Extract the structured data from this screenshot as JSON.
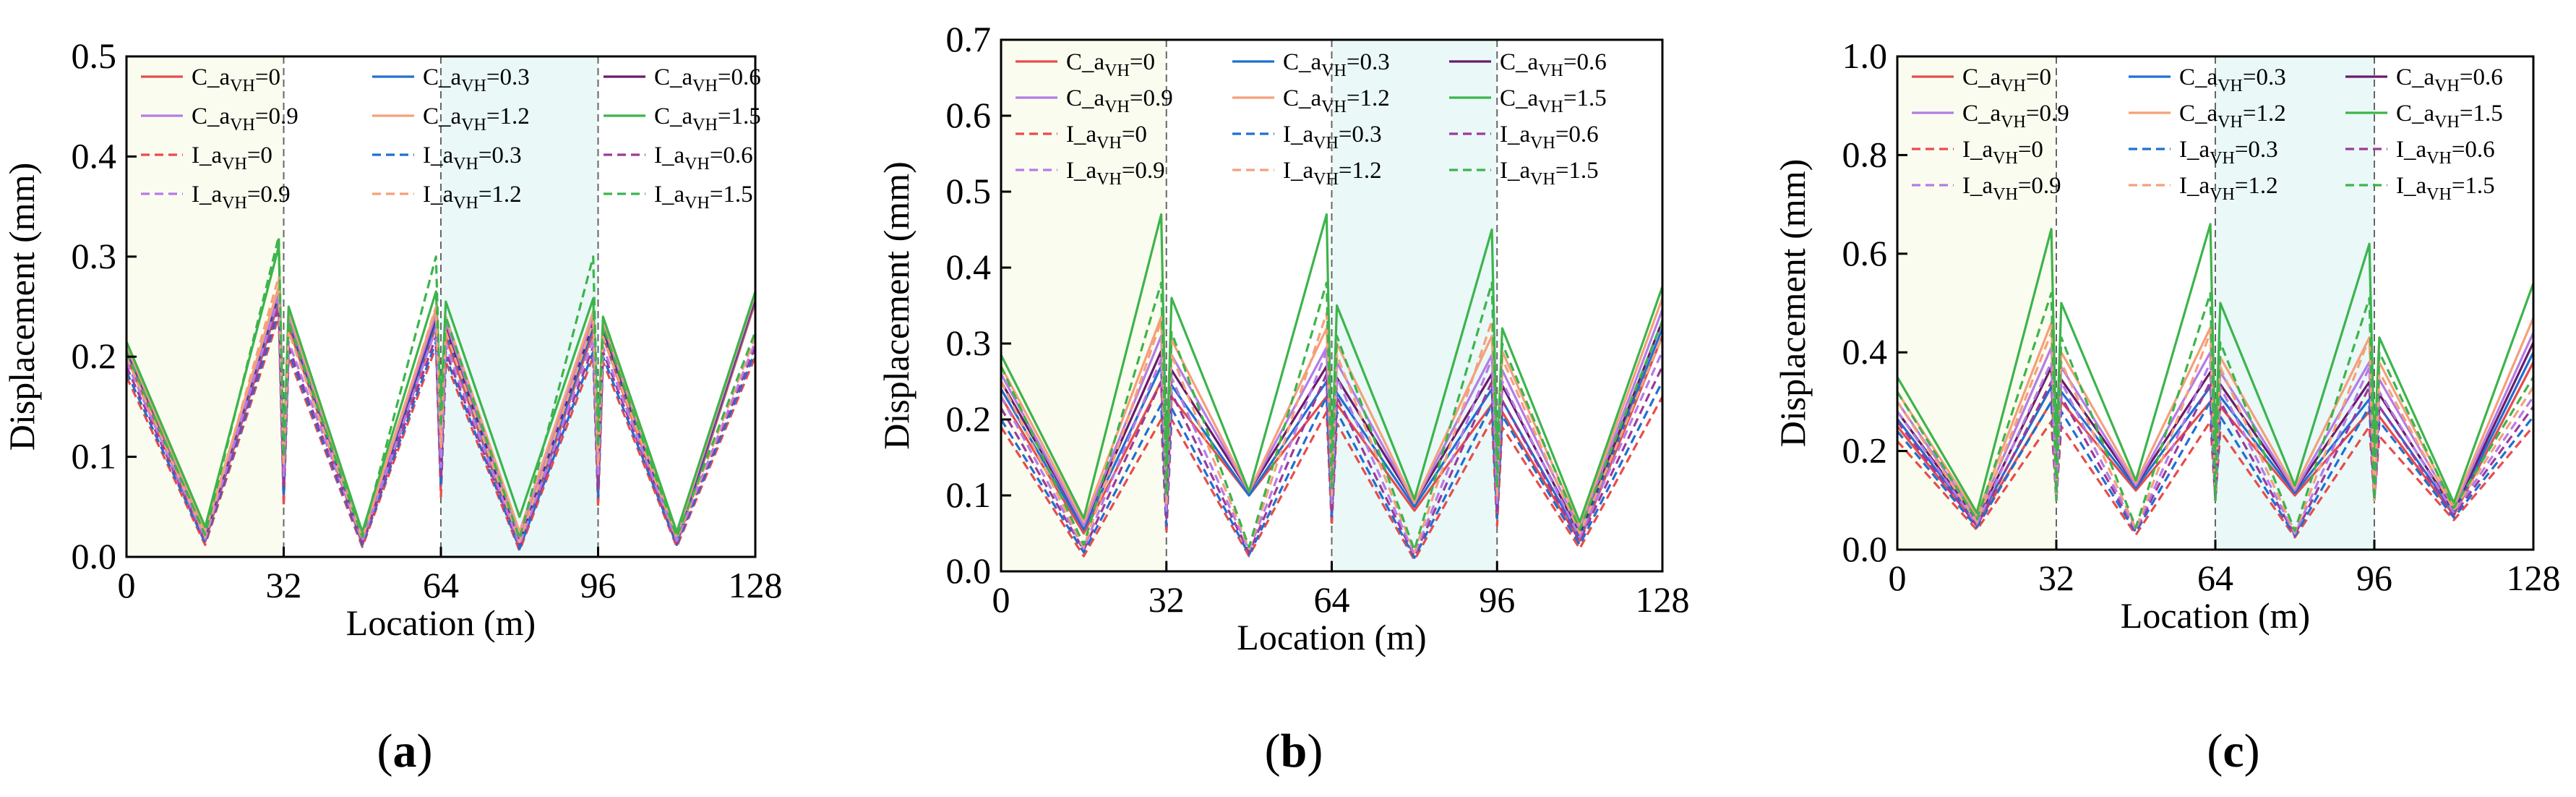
{
  "figure": {
    "panel_labels": [
      "a",
      "b",
      "c"
    ]
  },
  "chart_data": [
    {
      "type": "line",
      "panel": "a",
      "xlabel": "Location (m)",
      "ylabel": "Displacement (mm)",
      "xlim": [
        0,
        128
      ],
      "ylim": [
        0,
        0.5
      ],
      "xticks": [
        0,
        32,
        64,
        96,
        128
      ],
      "yticks": [
        "0.0",
        "0.1",
        "0.2",
        "0.3",
        "0.4",
        "0.5"
      ],
      "support_lines": [
        32,
        64,
        96
      ],
      "shaded_spans": [
        {
          "from": 0,
          "to": 32,
          "color": "#fbfcf0"
        },
        {
          "from": 64,
          "to": 96,
          "color": "#eaf8f8"
        }
      ],
      "legend_position": "top",
      "x": [
        0,
        16,
        31,
        32,
        33,
        48,
        63,
        64,
        65,
        80,
        95,
        96,
        97,
        112,
        128
      ],
      "series": [
        {
          "name": "C_aVH=0",
          "color": "#e74c4c",
          "dash": false,
          "values": [
            0.2,
            0.015,
            0.255,
            0.06,
            0.23,
            0.012,
            0.23,
            0.07,
            0.22,
            0.008,
            0.225,
            0.06,
            0.22,
            0.012,
            0.255
          ]
        },
        {
          "name": "C_aVH=0.3",
          "color": "#1f6fd1",
          "dash": false,
          "values": [
            0.205,
            0.02,
            0.26,
            0.07,
            0.235,
            0.015,
            0.235,
            0.08,
            0.225,
            0.012,
            0.23,
            0.07,
            0.225,
            0.015,
            0.258
          ]
        },
        {
          "name": "C_aVH=0.6",
          "color": "#6a1b6a",
          "dash": false,
          "values": [
            0.208,
            0.022,
            0.265,
            0.08,
            0.238,
            0.018,
            0.24,
            0.09,
            0.23,
            0.016,
            0.235,
            0.08,
            0.228,
            0.018,
            0.26
          ]
        },
        {
          "name": "C_aVH=0.9",
          "color": "#b57be6",
          "dash": false,
          "values": [
            0.21,
            0.024,
            0.268,
            0.085,
            0.24,
            0.02,
            0.243,
            0.1,
            0.235,
            0.02,
            0.24,
            0.09,
            0.232,
            0.02,
            0.262
          ]
        },
        {
          "name": "C_aVH=1.2",
          "color": "#f4a07a",
          "dash": false,
          "values": [
            0.212,
            0.026,
            0.27,
            0.09,
            0.245,
            0.022,
            0.248,
            0.11,
            0.24,
            0.025,
            0.245,
            0.095,
            0.236,
            0.022,
            0.263
          ]
        },
        {
          "name": "C_aVH=1.5",
          "color": "#3cb44b",
          "dash": false,
          "values": [
            0.215,
            0.03,
            0.31,
            0.1,
            0.25,
            0.025,
            0.265,
            0.15,
            0.255,
            0.04,
            0.258,
            0.12,
            0.24,
            0.025,
            0.265
          ]
        },
        {
          "name": "I_aVH=0",
          "color": "#e74c4c",
          "dash": true,
          "values": [
            0.18,
            0.012,
            0.24,
            0.05,
            0.2,
            0.01,
            0.21,
            0.06,
            0.195,
            0.006,
            0.2,
            0.05,
            0.195,
            0.01,
            0.2
          ]
        },
        {
          "name": "I_aVH=0.3",
          "color": "#1f6fd1",
          "dash": true,
          "values": [
            0.185,
            0.014,
            0.245,
            0.06,
            0.205,
            0.012,
            0.215,
            0.07,
            0.2,
            0.008,
            0.205,
            0.06,
            0.2,
            0.012,
            0.205
          ]
        },
        {
          "name": "I_aVH=0.6",
          "color": "#9b3a9b",
          "dash": true,
          "values": [
            0.19,
            0.016,
            0.25,
            0.07,
            0.21,
            0.014,
            0.22,
            0.08,
            0.205,
            0.01,
            0.21,
            0.07,
            0.205,
            0.014,
            0.21
          ]
        },
        {
          "name": "I_aVH=0.9",
          "color": "#b57be6",
          "dash": true,
          "values": [
            0.195,
            0.018,
            0.26,
            0.08,
            0.215,
            0.016,
            0.228,
            0.09,
            0.212,
            0.012,
            0.218,
            0.08,
            0.21,
            0.016,
            0.215
          ]
        },
        {
          "name": "I_aVH=1.2",
          "color": "#f4a07a",
          "dash": true,
          "values": [
            0.2,
            0.02,
            0.28,
            0.09,
            0.225,
            0.018,
            0.25,
            0.11,
            0.225,
            0.015,
            0.235,
            0.09,
            0.22,
            0.018,
            0.22
          ]
        },
        {
          "name": "I_aVH=1.5",
          "color": "#3cb44b",
          "dash": true,
          "values": [
            0.205,
            0.022,
            0.32,
            0.1,
            0.235,
            0.02,
            0.3,
            0.13,
            0.24,
            0.018,
            0.3,
            0.11,
            0.23,
            0.02,
            0.225
          ]
        }
      ]
    },
    {
      "type": "line",
      "panel": "b",
      "xlabel": "Location (m)",
      "ylabel": "Displacement (mm)",
      "xlim": [
        0,
        128
      ],
      "ylim": [
        0,
        0.7
      ],
      "xticks": [
        0,
        32,
        64,
        96,
        128
      ],
      "yticks": [
        "0.0",
        "0.1",
        "0.2",
        "0.3",
        "0.4",
        "0.5",
        "0.6",
        "0.7"
      ],
      "support_lines": [
        32,
        64,
        96
      ],
      "shaded_spans": [
        {
          "from": 0,
          "to": 32,
          "color": "#fbfcf0"
        },
        {
          "from": 64,
          "to": 96,
          "color": "#eaf8f8"
        }
      ],
      "legend_position": "top",
      "x": [
        0,
        16,
        31,
        32,
        33,
        48,
        63,
        64,
        65,
        80,
        95,
        96,
        97,
        112,
        128
      ],
      "series": [
        {
          "name": "C_aVH=0",
          "color": "#e74c4c",
          "dash": false,
          "values": [
            0.23,
            0.05,
            0.25,
            0.09,
            0.23,
            0.1,
            0.23,
            0.09,
            0.22,
            0.08,
            0.22,
            0.09,
            0.21,
            0.04,
            0.31
          ]
        },
        {
          "name": "C_aVH=0.3",
          "color": "#1f6fd1",
          "dash": false,
          "values": [
            0.24,
            0.055,
            0.27,
            0.1,
            0.245,
            0.1,
            0.25,
            0.1,
            0.235,
            0.085,
            0.24,
            0.1,
            0.225,
            0.045,
            0.32
          ]
        },
        {
          "name": "C_aVH=0.6",
          "color": "#6a1b6a",
          "dash": false,
          "values": [
            0.25,
            0.06,
            0.29,
            0.11,
            0.265,
            0.105,
            0.27,
            0.11,
            0.255,
            0.09,
            0.26,
            0.11,
            0.245,
            0.05,
            0.33
          ]
        },
        {
          "name": "C_aVH=0.9",
          "color": "#b57be6",
          "dash": false,
          "values": [
            0.26,
            0.06,
            0.31,
            0.12,
            0.285,
            0.105,
            0.295,
            0.12,
            0.275,
            0.09,
            0.285,
            0.12,
            0.265,
            0.055,
            0.345
          ]
        },
        {
          "name": "C_aVH=1.2",
          "color": "#f4a07a",
          "dash": false,
          "values": [
            0.27,
            0.065,
            0.335,
            0.13,
            0.305,
            0.105,
            0.32,
            0.13,
            0.3,
            0.09,
            0.31,
            0.13,
            0.29,
            0.06,
            0.36
          ]
        },
        {
          "name": "C_aVH=1.5",
          "color": "#3cb44b",
          "dash": false,
          "values": [
            0.285,
            0.07,
            0.47,
            0.14,
            0.36,
            0.105,
            0.47,
            0.14,
            0.35,
            0.095,
            0.45,
            0.14,
            0.32,
            0.065,
            0.375
          ]
        },
        {
          "name": "I_aVH=0",
          "color": "#e74c4c",
          "dash": true,
          "values": [
            0.19,
            0.02,
            0.2,
            0.05,
            0.2,
            0.02,
            0.21,
            0.06,
            0.195,
            0.015,
            0.2,
            0.06,
            0.19,
            0.03,
            0.23
          ]
        },
        {
          "name": "I_aVH=0.3",
          "color": "#1f6fd1",
          "dash": true,
          "values": [
            0.2,
            0.025,
            0.22,
            0.06,
            0.215,
            0.022,
            0.23,
            0.07,
            0.21,
            0.018,
            0.22,
            0.07,
            0.205,
            0.035,
            0.25
          ]
        },
        {
          "name": "I_aVH=0.6",
          "color": "#9b3a9b",
          "dash": true,
          "values": [
            0.215,
            0.028,
            0.25,
            0.07,
            0.235,
            0.025,
            0.26,
            0.08,
            0.23,
            0.02,
            0.25,
            0.08,
            0.225,
            0.04,
            0.27
          ]
        },
        {
          "name": "I_aVH=0.9",
          "color": "#b57be6",
          "dash": true,
          "values": [
            0.23,
            0.03,
            0.28,
            0.08,
            0.255,
            0.028,
            0.29,
            0.09,
            0.255,
            0.022,
            0.28,
            0.09,
            0.25,
            0.045,
            0.29
          ]
        },
        {
          "name": "I_aVH=1.2",
          "color": "#f4a07a",
          "dash": true,
          "values": [
            0.25,
            0.032,
            0.33,
            0.09,
            0.285,
            0.03,
            0.34,
            0.1,
            0.285,
            0.025,
            0.33,
            0.1,
            0.28,
            0.05,
            0.31
          ]
        },
        {
          "name": "I_aVH=1.5",
          "color": "#3cb44b",
          "dash": true,
          "values": [
            0.27,
            0.035,
            0.38,
            0.1,
            0.315,
            0.032,
            0.38,
            0.11,
            0.31,
            0.028,
            0.38,
            0.11,
            0.3,
            0.055,
            0.33
          ]
        }
      ]
    },
    {
      "type": "line",
      "panel": "c",
      "xlabel": "Location (m)",
      "ylabel": "Displacement (mm)",
      "xlim": [
        0,
        128
      ],
      "ylim": [
        0,
        1.0
      ],
      "xticks": [
        0,
        32,
        64,
        96,
        128
      ],
      "yticks": [
        "0.0",
        "0.2",
        "0.4",
        "0.6",
        "0.8",
        "1.0"
      ],
      "support_lines": [
        32,
        64,
        96
      ],
      "shaded_spans": [
        {
          "from": 0,
          "to": 32,
          "color": "#fbfcf0"
        },
        {
          "from": 64,
          "to": 96,
          "color": "#eaf8f8"
        }
      ],
      "legend_position": "top",
      "x": [
        0,
        16,
        31,
        32,
        33,
        48,
        63,
        64,
        65,
        80,
        95,
        96,
        97,
        112,
        128
      ],
      "series": [
        {
          "name": "C_aVH=0",
          "color": "#e74c4c",
          "dash": false,
          "values": [
            0.25,
            0.05,
            0.3,
            0.2,
            0.3,
            0.12,
            0.3,
            0.2,
            0.29,
            0.11,
            0.28,
            0.2,
            0.27,
            0.07,
            0.38
          ]
        },
        {
          "name": "C_aVH=0.3",
          "color": "#1f6fd1",
          "dash": false,
          "values": [
            0.265,
            0.055,
            0.33,
            0.2,
            0.32,
            0.125,
            0.33,
            0.2,
            0.31,
            0.115,
            0.305,
            0.2,
            0.29,
            0.075,
            0.4
          ]
        },
        {
          "name": "C_aVH=0.6",
          "color": "#6a1b6a",
          "dash": false,
          "values": [
            0.28,
            0.06,
            0.37,
            0.2,
            0.345,
            0.13,
            0.36,
            0.2,
            0.335,
            0.12,
            0.34,
            0.2,
            0.315,
            0.08,
            0.42
          ]
        },
        {
          "name": "C_aVH=0.9",
          "color": "#b57be6",
          "dash": false,
          "values": [
            0.3,
            0.065,
            0.41,
            0.2,
            0.37,
            0.13,
            0.4,
            0.2,
            0.36,
            0.12,
            0.38,
            0.2,
            0.345,
            0.085,
            0.44
          ]
        },
        {
          "name": "C_aVH=1.2",
          "color": "#f4a07a",
          "dash": false,
          "values": [
            0.32,
            0.07,
            0.46,
            0.2,
            0.4,
            0.135,
            0.45,
            0.2,
            0.39,
            0.125,
            0.43,
            0.2,
            0.38,
            0.09,
            0.47
          ]
        },
        {
          "name": "C_aVH=1.5",
          "color": "#3cb44b",
          "dash": false,
          "values": [
            0.35,
            0.075,
            0.65,
            0.2,
            0.5,
            0.14,
            0.66,
            0.2,
            0.5,
            0.13,
            0.62,
            0.2,
            0.43,
            0.095,
            0.54
          ]
        },
        {
          "name": "I_aVH=0",
          "color": "#e74c4c",
          "dash": true,
          "values": [
            0.22,
            0.04,
            0.26,
            0.1,
            0.25,
            0.03,
            0.26,
            0.1,
            0.24,
            0.025,
            0.25,
            0.1,
            0.23,
            0.06,
            0.25
          ]
        },
        {
          "name": "I_aVH=0.3",
          "color": "#1f6fd1",
          "dash": true,
          "values": [
            0.24,
            0.045,
            0.3,
            0.1,
            0.28,
            0.035,
            0.3,
            0.1,
            0.27,
            0.028,
            0.29,
            0.1,
            0.26,
            0.065,
            0.27
          ]
        },
        {
          "name": "I_aVH=0.6",
          "color": "#9b3a9b",
          "dash": true,
          "values": [
            0.26,
            0.048,
            0.34,
            0.1,
            0.31,
            0.038,
            0.34,
            0.1,
            0.3,
            0.03,
            0.33,
            0.1,
            0.29,
            0.07,
            0.29
          ]
        },
        {
          "name": "I_aVH=0.9",
          "color": "#b57be6",
          "dash": true,
          "values": [
            0.28,
            0.052,
            0.38,
            0.1,
            0.34,
            0.04,
            0.38,
            0.1,
            0.33,
            0.032,
            0.37,
            0.1,
            0.32,
            0.075,
            0.31
          ]
        },
        {
          "name": "I_aVH=1.2",
          "color": "#f4a07a",
          "dash": true,
          "values": [
            0.3,
            0.056,
            0.44,
            0.1,
            0.38,
            0.043,
            0.44,
            0.1,
            0.37,
            0.035,
            0.43,
            0.1,
            0.36,
            0.08,
            0.33
          ]
        },
        {
          "name": "I_aVH=1.5",
          "color": "#3cb44b",
          "dash": true,
          "values": [
            0.32,
            0.06,
            0.52,
            0.1,
            0.43,
            0.045,
            0.52,
            0.1,
            0.42,
            0.038,
            0.51,
            0.1,
            0.4,
            0.085,
            0.35
          ]
        }
      ]
    }
  ]
}
